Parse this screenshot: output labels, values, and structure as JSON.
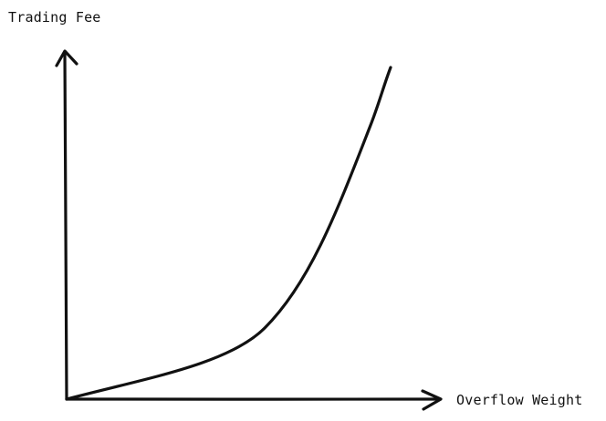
{
  "diagram": {
    "y_axis_label": "Trading Fee",
    "x_axis_label": "Overflow Weight"
  },
  "colors": {
    "ink": "#111111",
    "background": "#ffffff"
  }
}
